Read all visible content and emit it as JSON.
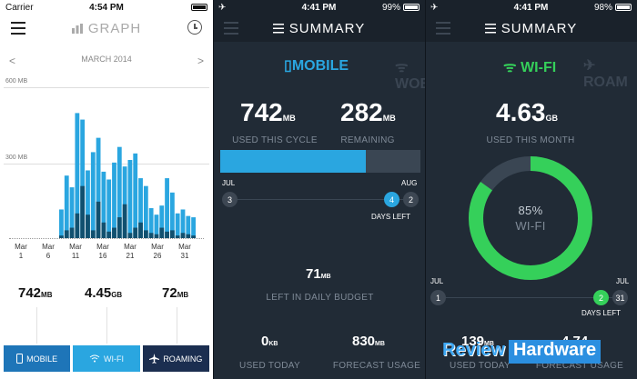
{
  "colors": {
    "accent_blue": "#2aa6e0",
    "accent_green": "#35d05a",
    "dark_bg": "#212b36",
    "tab_mobile": "#1e75b8",
    "tab_roaming": "#1b2e50"
  },
  "screen1": {
    "status": {
      "carrier": "Carrier",
      "time": "4:54 PM",
      "battery_level": 1.0
    },
    "nav": {
      "title": "GRAPH",
      "icon": "graph-icon"
    },
    "month": {
      "label": "MARCH 2014",
      "prev": "<",
      "next": ">"
    },
    "y_labels": [
      "600 MB",
      "300 MB"
    ],
    "chart_data": {
      "type": "bar",
      "ylim": [
        0,
        600
      ],
      "yticks": [
        "600 MB",
        "300 MB"
      ],
      "xticks": [
        [
          "Mar",
          "1"
        ],
        [
          "Mar",
          "6"
        ],
        [
          "Mar",
          "11"
        ],
        [
          "Mar",
          "16"
        ],
        [
          "Mar",
          "21"
        ],
        [
          "Mar",
          "26"
        ],
        [
          "Mar",
          "31"
        ]
      ],
      "series": [
        {
          "values": [
            0,
            0,
            0,
            0,
            0,
            110,
            240,
            195,
            480,
            455,
            260,
            330,
            385,
            255,
            225,
            290,
            350,
            275,
            300,
            325,
            230,
            200,
            115,
            90,
            125,
            230,
            175,
            95,
            110,
            85,
            80
          ]
        },
        {
          "values": [
            0,
            0,
            0,
            0,
            0,
            10,
            30,
            40,
            95,
            200,
            90,
            30,
            140,
            60,
            25,
            40,
            80,
            130,
            20,
            40,
            60,
            30,
            20,
            15,
            40,
            25,
            30,
            10,
            20,
            15,
            10
          ]
        }
      ]
    },
    "stats": [
      {
        "value": "742",
        "unit": "MB"
      },
      {
        "value": "4.45",
        "unit": "GB"
      },
      {
        "value": "72",
        "unit": "MB"
      }
    ],
    "tabs": [
      {
        "label": "MOBILE",
        "icon": "phone-icon"
      },
      {
        "label": "WI-FI",
        "icon": "wifi-icon"
      },
      {
        "label": "ROAMING",
        "icon": "plane-icon"
      }
    ]
  },
  "screen2": {
    "status": {
      "time": "4:41 PM",
      "battery": "99%",
      "battery_level": 0.99
    },
    "nav": {
      "title": "SUMMARY"
    },
    "carousel": {
      "active": "MOBILE",
      "ghost": "WOBILE"
    },
    "used": {
      "value": "742",
      "unit": "MB",
      "caption": "USED THIS CYCLE"
    },
    "remaining": {
      "value": "282",
      "unit": "MB",
      "caption": "REMAINING"
    },
    "usage_fraction": 0.725,
    "timeline": {
      "start_month": "JUL",
      "end_month": "AUG",
      "start_day": "3",
      "current_day": "4",
      "end_day": "2",
      "days_left_label": "DAYS LEFT"
    },
    "daily_budget": {
      "value": "71",
      "unit": "MB",
      "caption": "LEFT IN DAILY BUDGET"
    },
    "used_today": {
      "value": "0",
      "unit": "KB",
      "caption": "USED TODAY"
    },
    "forecast": {
      "value": "830",
      "unit": "MB",
      "caption": "FORECAST USAGE"
    }
  },
  "screen3": {
    "status": {
      "time": "4:41 PM",
      "battery": "98%",
      "battery_level": 0.98
    },
    "nav": {
      "title": "SUMMARY"
    },
    "carousel": {
      "active": "WI-FI",
      "ghost": "ROAM"
    },
    "used": {
      "value": "4.63",
      "unit": "GB",
      "caption": "USED THIS MONTH"
    },
    "donut": {
      "percent_label": "85%",
      "label": "WI-FI",
      "fraction": 0.85
    },
    "timeline": {
      "start_month": "JUL",
      "end_month": "JUL",
      "start_day": "1",
      "current_day": "2",
      "end_day": "31",
      "days_left_label": "DAYS LEFT"
    },
    "used_today": {
      "value": "139",
      "unit": "MB",
      "caption": "USED TODAY"
    },
    "forecast": {
      "value": "4.74",
      "unit": "GB",
      "caption": "FORECAST USAGE"
    }
  },
  "watermark": {
    "part1": "Review",
    "part2": "Hardware"
  }
}
